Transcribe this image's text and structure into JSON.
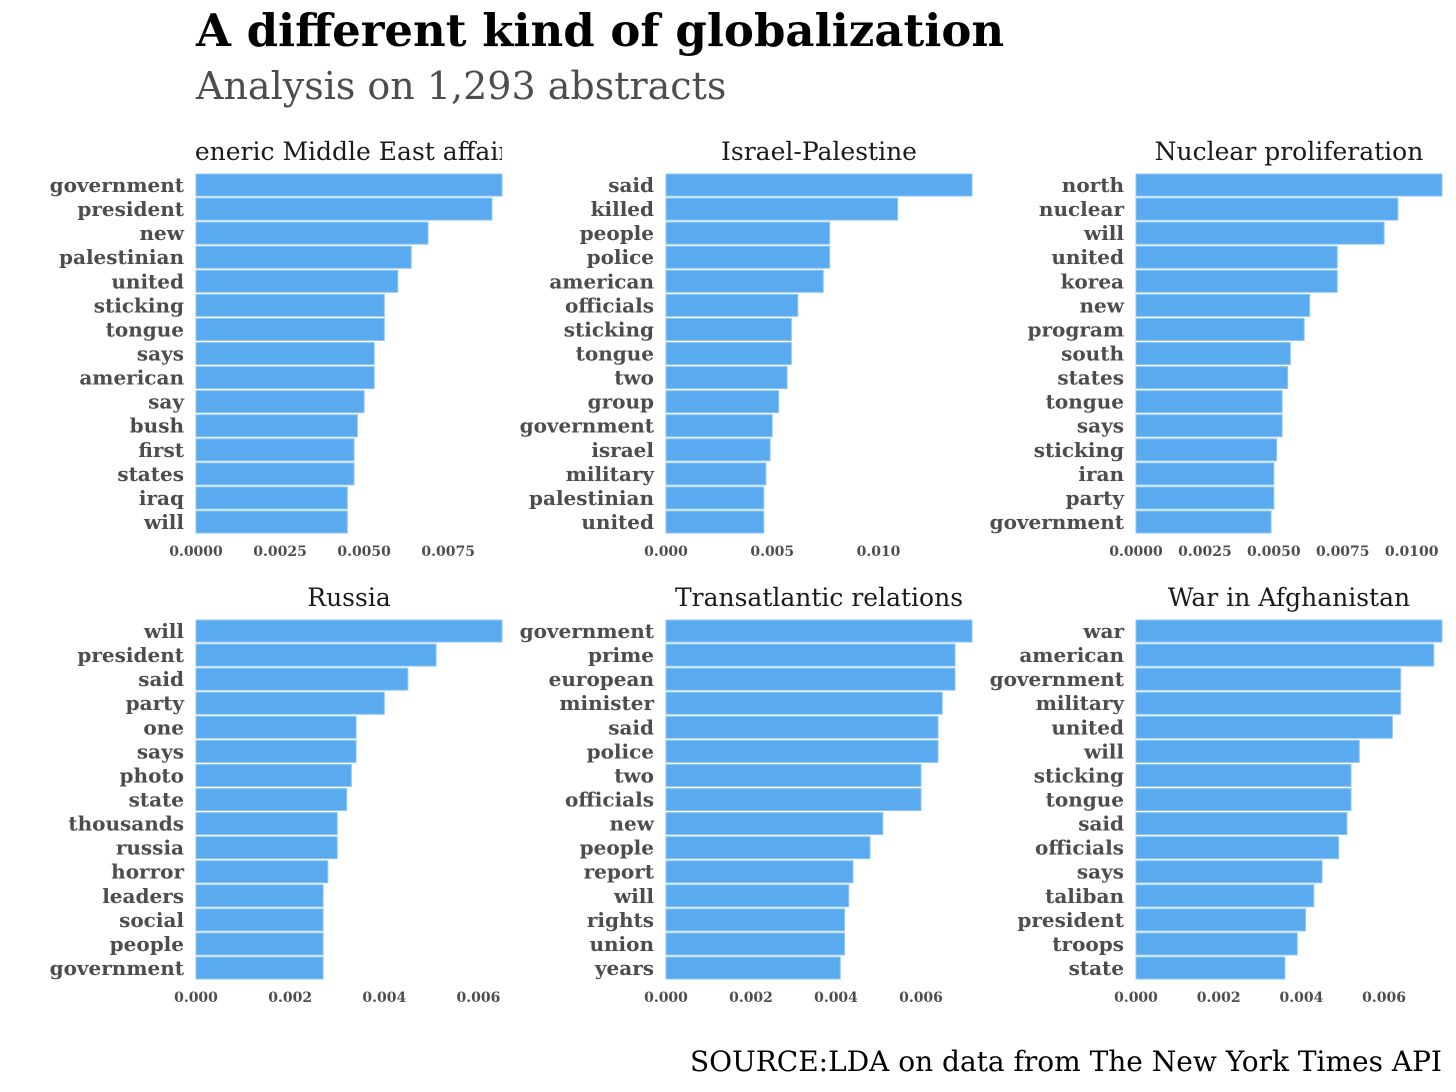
{
  "title": "A different kind of globalization",
  "subtitle": "Analysis on 1,293 abstracts",
  "source": "SOURCE:LDA on data from The New York Times API",
  "colors": {
    "bar": "#5aaaf0",
    "bar_edge": "#8ec7f5"
  },
  "chart_data": [
    {
      "type": "bar",
      "orientation": "horizontal",
      "title": "Generic Middle East affairs",
      "categories": [
        "government",
        "president",
        "new",
        "palestinian",
        "united",
        "sticking",
        "tongue",
        "says",
        "american",
        "say",
        "bush",
        "first",
        "states",
        "iraq",
        "will"
      ],
      "values": [
        0.0091,
        0.0088,
        0.0069,
        0.0064,
        0.006,
        0.0056,
        0.0056,
        0.0053,
        0.0053,
        0.005,
        0.0048,
        0.0047,
        0.0047,
        0.0045,
        0.0045
      ],
      "xlim": [
        0,
        0.0091
      ],
      "xticks": [
        0,
        0.0025,
        0.005,
        0.0075
      ],
      "xtick_labels": [
        "0.0000",
        "0.0025",
        "0.0050",
        "0.0075"
      ]
    },
    {
      "type": "bar",
      "orientation": "horizontal",
      "title": "Israel-Palestine",
      "categories": [
        "said",
        "killed",
        "people",
        "police",
        "american",
        "officials",
        "sticking",
        "tongue",
        "two",
        "group",
        "government",
        "israel",
        "military",
        "palestinian",
        "united"
      ],
      "values": [
        0.0144,
        0.0109,
        0.0077,
        0.0077,
        0.0074,
        0.0062,
        0.0059,
        0.0059,
        0.0057,
        0.0053,
        0.005,
        0.0049,
        0.0047,
        0.0046,
        0.0046
      ],
      "xlim": [
        0,
        0.0144
      ],
      "xticks": [
        0,
        0.005,
        0.01
      ],
      "xtick_labels": [
        "0.000",
        "0.005",
        "0.010"
      ]
    },
    {
      "type": "bar",
      "orientation": "horizontal",
      "title": "Nuclear proliferation",
      "categories": [
        "north",
        "nuclear",
        "will",
        "united",
        "korea",
        "new",
        "program",
        "south",
        "states",
        "tongue",
        "says",
        "sticking",
        "iran",
        "party",
        "government"
      ],
      "values": [
        0.0111,
        0.0095,
        0.009,
        0.0073,
        0.0073,
        0.0063,
        0.0061,
        0.0056,
        0.0055,
        0.0053,
        0.0053,
        0.0051,
        0.005,
        0.005,
        0.0049
      ],
      "xlim": [
        0,
        0.0111
      ],
      "xticks": [
        0,
        0.0025,
        0.005,
        0.0075,
        0.01
      ],
      "xtick_labels": [
        "0.0000",
        "0.0025",
        "0.0050",
        "0.0075",
        "0.0100"
      ]
    },
    {
      "type": "bar",
      "orientation": "horizontal",
      "title": "Russia",
      "categories": [
        "will",
        "president",
        "said",
        "party",
        "one",
        "says",
        "photo",
        "state",
        "thousands",
        "russia",
        "horror",
        "leaders",
        "social",
        "people",
        "government"
      ],
      "values": [
        0.0065,
        0.0051,
        0.0045,
        0.004,
        0.0034,
        0.0034,
        0.0033,
        0.0032,
        0.003,
        0.003,
        0.0028,
        0.0027,
        0.0027,
        0.0027,
        0.0027
      ],
      "xlim": [
        0,
        0.0065
      ],
      "xticks": [
        0,
        0.002,
        0.004,
        0.006
      ],
      "xtick_labels": [
        "0.000",
        "0.002",
        "0.004",
        "0.006"
      ]
    },
    {
      "type": "bar",
      "orientation": "horizontal",
      "title": "Transatlantic relations",
      "categories": [
        "government",
        "prime",
        "european",
        "minister",
        "said",
        "police",
        "two",
        "officials",
        "new",
        "people",
        "report",
        "will",
        "rights",
        "union",
        "years"
      ],
      "values": [
        0.0072,
        0.0068,
        0.0068,
        0.0065,
        0.0064,
        0.0064,
        0.006,
        0.006,
        0.0051,
        0.0048,
        0.0044,
        0.0043,
        0.0042,
        0.0042,
        0.0041
      ],
      "xlim": [
        0,
        0.0072
      ],
      "xticks": [
        0,
        0.002,
        0.004,
        0.006
      ],
      "xtick_labels": [
        "0.000",
        "0.002",
        "0.004",
        "0.006"
      ]
    },
    {
      "type": "bar",
      "orientation": "horizontal",
      "title": "War in Afghanistan",
      "categories": [
        "war",
        "american",
        "government",
        "military",
        "united",
        "will",
        "sticking",
        "tongue",
        "said",
        "officials",
        "says",
        "taliban",
        "president",
        "troops",
        "state"
      ],
      "values": [
        0.0074,
        0.0072,
        0.0064,
        0.0064,
        0.0062,
        0.0054,
        0.0052,
        0.0052,
        0.0051,
        0.0049,
        0.0045,
        0.0043,
        0.0041,
        0.0039,
        0.0036
      ],
      "xlim": [
        0,
        0.0074
      ],
      "xticks": [
        0,
        0.002,
        0.004,
        0.006
      ],
      "xtick_labels": [
        "0.000",
        "0.002",
        "0.004",
        "0.006"
      ]
    }
  ]
}
